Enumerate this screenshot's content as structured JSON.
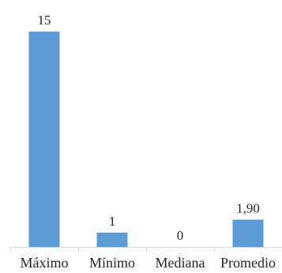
{
  "chart_data": {
    "type": "bar",
    "categories": [
      "Máximo",
      "Mínimo",
      "Mediana",
      "Promedio"
    ],
    "values": [
      15,
      1,
      0,
      1.9
    ],
    "data_labels": [
      "15",
      "1",
      "0",
      "1,90"
    ],
    "title": "",
    "xlabel": "",
    "ylabel": "",
    "ylim": [
      0,
      15
    ],
    "grid": false,
    "legend": "none",
    "bar_color": "#5B9BD5",
    "axis_color": "#D9D9D9",
    "text_color": "#262626"
  }
}
